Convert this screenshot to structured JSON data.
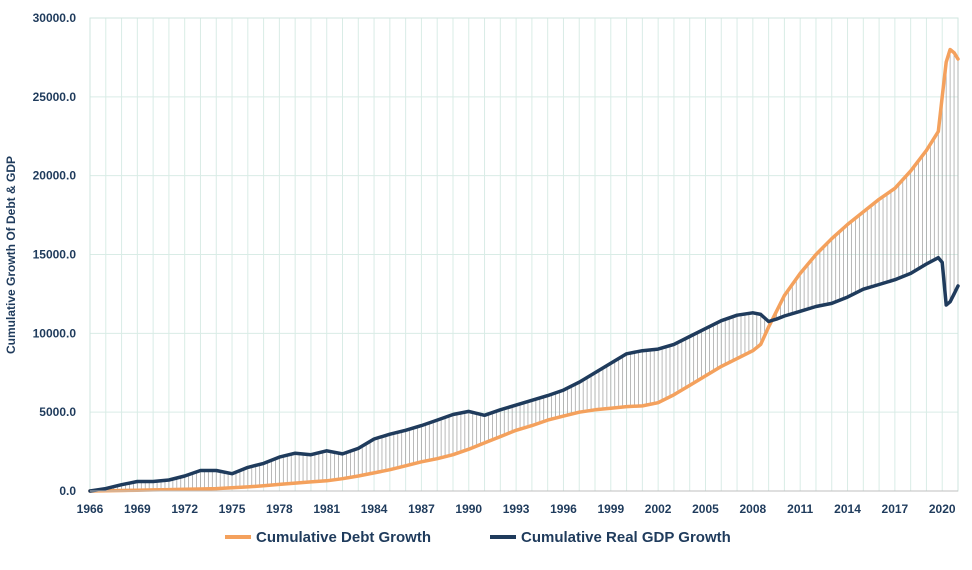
{
  "chart_data": {
    "type": "line",
    "title": "",
    "xlabel": "",
    "ylabel": "Cumulative Growth Of Debt & GDP",
    "xlim": [
      1966,
      2021
    ],
    "ylim": [
      0,
      30000
    ],
    "x_ticks": [
      1966,
      1969,
      1972,
      1975,
      1978,
      1981,
      1984,
      1987,
      1990,
      1993,
      1996,
      1999,
      2002,
      2005,
      2008,
      2011,
      2014,
      2017,
      2020
    ],
    "x_tick_labels": [
      "1966",
      "1969",
      "1972",
      "1975",
      "1978",
      "1981",
      "1984",
      "1987",
      "1990",
      "1993",
      "1996",
      "1999",
      "2002",
      "2005",
      "2008",
      "2011",
      "2014",
      "2017",
      "2020"
    ],
    "y_ticks": [
      0,
      5000,
      10000,
      15000,
      20000,
      25000,
      30000
    ],
    "y_tick_labels": [
      "0.0",
      "5000.0",
      "10000.0",
      "15000.0",
      "20000.0",
      "25000.0",
      "30000.0"
    ],
    "grid": {
      "vertical": true,
      "horizontal": true
    },
    "legend_position": "bottom",
    "fill_between": "vertical-hatch",
    "series": [
      {
        "name": "Cumulative Debt Growth",
        "color": "#f4a15d",
        "x": [
          1966,
          1967,
          1968,
          1969,
          1970,
          1971,
          1972,
          1973,
          1974,
          1975,
          1976,
          1977,
          1978,
          1979,
          1980,
          1981,
          1982,
          1983,
          1984,
          1985,
          1986,
          1987,
          1988,
          1989,
          1990,
          1991,
          1992,
          1993,
          1994,
          1995,
          1996,
          1997,
          1998,
          1999,
          2000,
          2001,
          2002,
          2003,
          2004,
          2005,
          2006,
          2007,
          2008,
          2008.5,
          2009,
          2009.5,
          2010,
          2011,
          2012,
          2013,
          2014,
          2015,
          2016,
          2017,
          2018,
          2019,
          2019.75,
          2020,
          2020.25,
          2020.5,
          2020.75,
          2021
        ],
        "values": [
          0,
          10,
          30,
          50,
          70,
          90,
          110,
          130,
          150,
          200,
          260,
          330,
          420,
          500,
          580,
          650,
          780,
          950,
          1150,
          1350,
          1600,
          1850,
          2050,
          2300,
          2650,
          3050,
          3450,
          3850,
          4150,
          4500,
          4750,
          5000,
          5150,
          5250,
          5350,
          5400,
          5600,
          6100,
          6700,
          7300,
          7900,
          8400,
          8900,
          9300,
          10400,
          11400,
          12400,
          13800,
          15000,
          16000,
          16900,
          17700,
          18500,
          19200,
          20300,
          21600,
          22800,
          25000,
          27200,
          28000,
          27800,
          27400
        ]
      },
      {
        "name": "Cumulative Real GDP Growth",
        "color": "#1f3b5c",
        "x": [
          1966,
          1967,
          1968,
          1969,
          1970,
          1971,
          1972,
          1973,
          1974,
          1975,
          1976,
          1977,
          1978,
          1979,
          1980,
          1981,
          1982,
          1983,
          1984,
          1985,
          1986,
          1987,
          1988,
          1989,
          1990,
          1991,
          1992,
          1993,
          1994,
          1995,
          1996,
          1997,
          1998,
          1999,
          2000,
          2001,
          2002,
          2003,
          2004,
          2005,
          2006,
          2007,
          2008,
          2008.5,
          2009,
          2009.5,
          2010,
          2011,
          2012,
          2013,
          2014,
          2015,
          2016,
          2017,
          2018,
          2019,
          2019.75,
          2020,
          2020.25,
          2020.5,
          2020.75,
          2021
        ],
        "values": [
          0,
          150,
          400,
          600,
          600,
          700,
          950,
          1300,
          1300,
          1100,
          1500,
          1750,
          2150,
          2400,
          2300,
          2550,
          2350,
          2700,
          3300,
          3600,
          3850,
          4150,
          4500,
          4850,
          5050,
          4800,
          5150,
          5450,
          5750,
          6050,
          6400,
          6900,
          7500,
          8100,
          8700,
          8900,
          9000,
          9300,
          9800,
          10300,
          10800,
          11150,
          11300,
          11200,
          10750,
          10900,
          11100,
          11400,
          11700,
          11900,
          12300,
          12800,
          13100,
          13400,
          13800,
          14400,
          14800,
          14500,
          11800,
          12000,
          12500,
          13000
        ]
      }
    ]
  }
}
